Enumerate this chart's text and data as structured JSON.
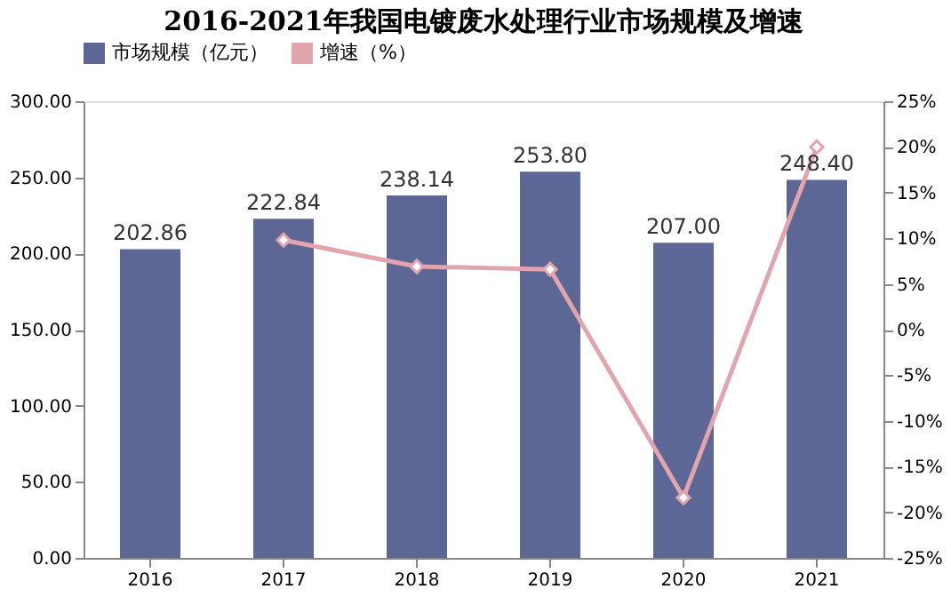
{
  "chart_data": {
    "type": "bar",
    "title": "2016-2021年我国电镀废水处理行业市场规模及增速",
    "categories": [
      "2016",
      "2017",
      "2018",
      "2019",
      "2020",
      "2021"
    ],
    "series": [
      {
        "name": "市场规模（亿元）",
        "type": "bar",
        "color": "#5d6795",
        "values": [
          202.86,
          222.84,
          238.14,
          253.8,
          207.0,
          248.4
        ],
        "value_labels": [
          "202.86",
          "222.84",
          "238.14",
          "253.80",
          "207.00",
          "248.40"
        ]
      },
      {
        "name": "增速（%）",
        "type": "line",
        "axis": "y2",
        "color": "#e3a5ad",
        "marker": "diamond",
        "values": [
          null,
          9.8,
          6.9,
          6.6,
          -18.4,
          20.0
        ]
      }
    ],
    "ylim": [
      0,
      300
    ],
    "yticks": [
      {
        "value": 0,
        "label": "0.00"
      },
      {
        "value": 50,
        "label": "50.00"
      },
      {
        "value": 100,
        "label": "100.00"
      },
      {
        "value": 150,
        "label": "150.00"
      },
      {
        "value": 200,
        "label": "200.00"
      },
      {
        "value": 250,
        "label": "250.00"
      },
      {
        "value": 300,
        "label": "300.00"
      }
    ],
    "y2lim": [
      -25,
      25
    ],
    "y2ticks": [
      {
        "value": -25,
        "label": "-25%"
      },
      {
        "value": -20,
        "label": "-20%"
      },
      {
        "value": -15,
        "label": "-15%"
      },
      {
        "value": -10,
        "label": "-10%"
      },
      {
        "value": -5,
        "label": "-5%"
      },
      {
        "value": 0,
        "label": "0%"
      },
      {
        "value": 5,
        "label": "5%"
      },
      {
        "value": 10,
        "label": "10%"
      },
      {
        "value": 15,
        "label": "15%"
      },
      {
        "value": 20,
        "label": "20%"
      },
      {
        "value": 25,
        "label": "25%"
      }
    ],
    "legend": "top",
    "grid": false
  }
}
